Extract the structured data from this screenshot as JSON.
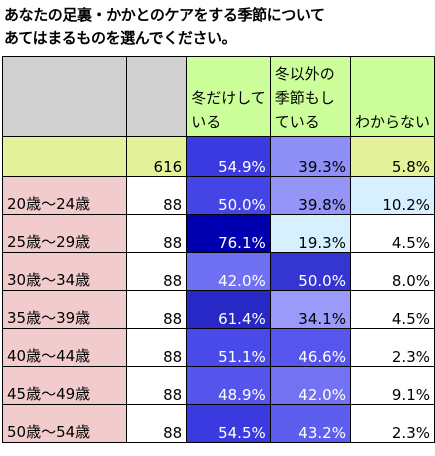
{
  "title": {
    "line1": "あなたの足裏・かかとのケアをする季節について",
    "line2": "あてはまるものを選んでください。"
  },
  "chart_data": {
    "type": "table",
    "columns": [
      {
        "line1": "冬だけして",
        "line2": "いる"
      },
      {
        "line1": "冬以外の",
        "line2": "季節もし",
        "line3": "ている"
      },
      {
        "line1": "わからない"
      }
    ],
    "total": {
      "n": "616",
      "values": [
        "54.9%",
        "39.3%",
        "5.8%"
      ]
    },
    "rows": [
      {
        "label": "20歳～24歳",
        "n": "88",
        "values": [
          "50.0%",
          "39.8%",
          "10.2%"
        ]
      },
      {
        "label": "25歳～29歳",
        "n": "88",
        "values": [
          "76.1%",
          "19.3%",
          "4.5%"
        ]
      },
      {
        "label": "30歳～34歳",
        "n": "88",
        "values": [
          "42.0%",
          "50.0%",
          "8.0%"
        ]
      },
      {
        "label": "35歳～39歳",
        "n": "88",
        "values": [
          "61.4%",
          "34.1%",
          "4.5%"
        ]
      },
      {
        "label": "40歳～44歳",
        "n": "88",
        "values": [
          "51.1%",
          "46.6%",
          "2.3%"
        ]
      },
      {
        "label": "45歳～49歳",
        "n": "88",
        "values": [
          "48.9%",
          "42.0%",
          "9.1%"
        ]
      },
      {
        "label": "50歳～54歳",
        "n": "88",
        "values": [
          "54.5%",
          "43.2%",
          "2.3%"
        ]
      }
    ]
  },
  "cell_colors": {
    "total": [
      "#3a3ae0",
      "#8f8ff8",
      "#e4f39a"
    ],
    "rows": [
      [
        "#4545e6",
        "#9595f8",
        "#d6f0ff"
      ],
      [
        "#0000b0",
        "#d6f0ff",
        "#ffffff"
      ],
      [
        "#7070f2",
        "#3535d2",
        "#ffffff"
      ],
      [
        "#2828c6",
        "#9a9af8",
        "#ffffff"
      ],
      [
        "#4a4ae8",
        "#5656ec",
        "#ffffff"
      ],
      [
        "#5555ec",
        "#7272f2",
        "#ffffff"
      ],
      [
        "#3a3ae0",
        "#5e5eee",
        "#ffffff"
      ]
    ]
  }
}
